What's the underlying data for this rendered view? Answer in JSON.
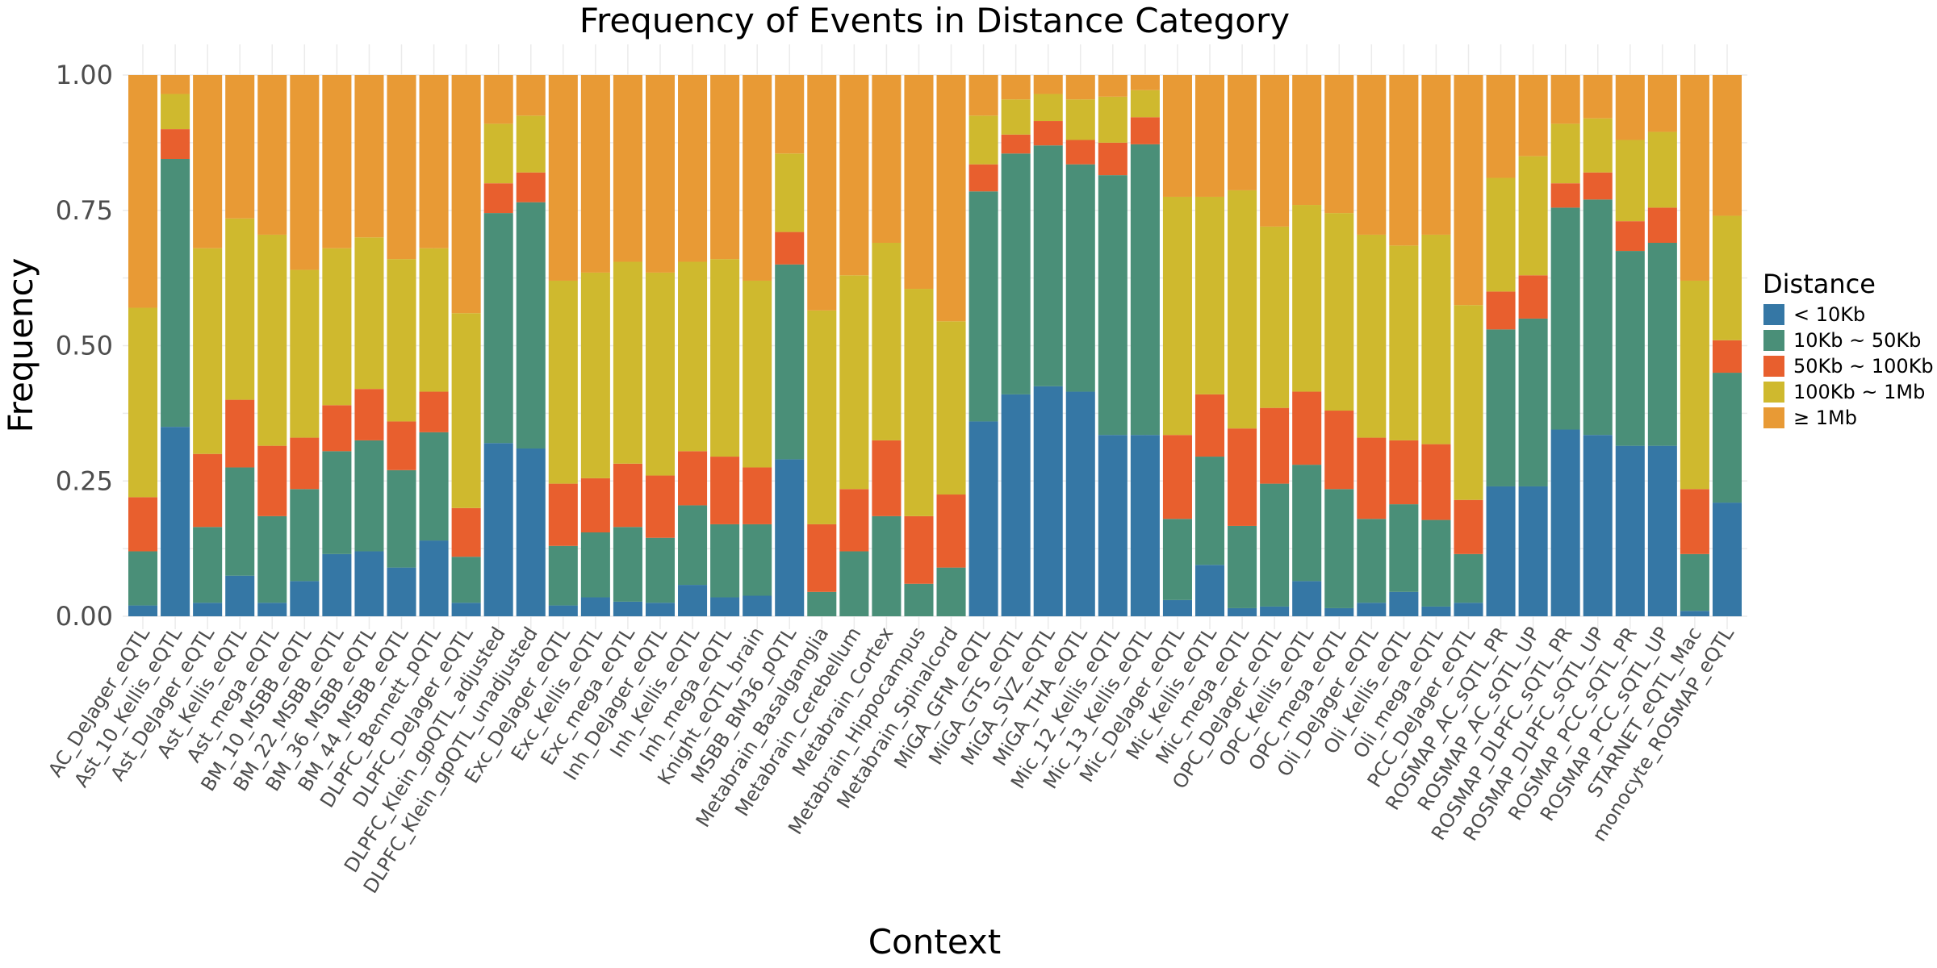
{
  "chart_data": {
    "type": "bar",
    "stacked": true,
    "title": "Frequency of Events in Distance Category",
    "xlabel": "Context",
    "ylabel": "Frequency",
    "ylim": [
      0,
      1
    ],
    "yticks": [
      "0.00",
      "0.25",
      "0.50",
      "0.75",
      "1.00"
    ],
    "grid": true,
    "legend_title": "Distance",
    "legend_position": "right",
    "categories": [
      "AC_DeJager_eQTL",
      "Ast_10_Kellis_eQTL",
      "Ast_DeJager_eQTL",
      "Ast_Kellis_eQTL",
      "Ast_mega_eQTL",
      "BM_10_MSBB_eQTL",
      "BM_22_MSBB_eQTL",
      "BM_36_MSBB_eQTL",
      "BM_44_MSBB_eQTL",
      "DLPFC_Bennett_pQTL",
      "DLPFC_DeJager_eQTL",
      "DLPFC_Klein_gpQTL_adjusted",
      "DLPFC_Klein_gpQTL_unadjusted",
      "Exc_DeJager_eQTL",
      "Exc_Kellis_eQTL",
      "Exc_mega_eQTL",
      "Inh_DeJager_eQTL",
      "Inh_Kellis_eQTL",
      "Inh_mega_eQTL",
      "Knight_eQTL_brain",
      "MSBB_BM36_pQTL",
      "Metabrain_Basalganglia",
      "Metabrain_Cerebellum",
      "Metabrain_Cortex",
      "Metabrain_Hippocampus",
      "Metabrain_Spinalcord",
      "MiGA_GFM_eQTL",
      "MiGA_GTS_eQTL",
      "MiGA_SVZ_eQTL",
      "MiGA_THA_eQTL",
      "Mic_12_Kellis_eQTL",
      "Mic_13_Kellis_eQTL",
      "Mic_DeJager_eQTL",
      "Mic_Kellis_eQTL",
      "Mic_mega_eQTL",
      "OPC_DeJager_eQTL",
      "OPC_Kellis_eQTL",
      "OPC_mega_eQTL",
      "Oli_DeJager_eQTL",
      "Oli_Kellis_eQTL",
      "Oli_mega_eQTL",
      "PCC_DeJager_eQTL",
      "ROSMAP_AC_sQTL_PR",
      "ROSMAP_AC_sQTL_UP",
      "ROSMAP_DLPFC_sQTL_PR",
      "ROSMAP_DLPFC_sQTL_UP",
      "ROSMAP_PCC_sQTL_PR",
      "ROSMAP_PCC_sQTL_UP",
      "STARNET_eQTL_Mac",
      "monocyte_ROSMAP_eQTL"
    ],
    "series": [
      {
        "name": "< 10Kb",
        "color": "#3577a5",
        "values": [
          0.02,
          0.35,
          0.025,
          0.075,
          0.025,
          0.065,
          0.115,
          0.12,
          0.09,
          0.14,
          0.025,
          0.32,
          0.31,
          0.02,
          0.035,
          0.027,
          0.025,
          0.058,
          0.035,
          0.038,
          0.29,
          0.0,
          0.0,
          0.0,
          0.0,
          0.0,
          0.36,
          0.41,
          0.425,
          0.415,
          0.335,
          0.335,
          0.03,
          0.095,
          0.015,
          0.018,
          0.065,
          0.015,
          0.025,
          0.045,
          0.018,
          0.025,
          0.24,
          0.24,
          0.345,
          0.335,
          0.315,
          0.315,
          0.01,
          0.21
        ]
      },
      {
        "name": "10Kb ~ 50Kb",
        "color": "#4a8f78",
        "values": [
          0.1,
          0.495,
          0.14,
          0.2,
          0.16,
          0.17,
          0.19,
          0.205,
          0.18,
          0.2,
          0.085,
          0.425,
          0.455,
          0.11,
          0.12,
          0.138,
          0.12,
          0.147,
          0.135,
          0.132,
          0.36,
          0.045,
          0.12,
          0.185,
          0.06,
          0.09,
          0.425,
          0.445,
          0.445,
          0.42,
          0.48,
          0.537,
          0.15,
          0.2,
          0.152,
          0.227,
          0.215,
          0.22,
          0.155,
          0.162,
          0.16,
          0.09,
          0.29,
          0.31,
          0.41,
          0.435,
          0.36,
          0.375,
          0.105,
          0.24
        ]
      },
      {
        "name": "50Kb ~ 100Kb",
        "color": "#e85f2e",
        "values": [
          0.1,
          0.055,
          0.135,
          0.125,
          0.13,
          0.095,
          0.085,
          0.095,
          0.09,
          0.075,
          0.09,
          0.055,
          0.055,
          0.115,
          0.1,
          0.117,
          0.115,
          0.1,
          0.125,
          0.105,
          0.06,
          0.125,
          0.115,
          0.14,
          0.125,
          0.135,
          0.05,
          0.035,
          0.045,
          0.045,
          0.06,
          0.05,
          0.155,
          0.115,
          0.18,
          0.14,
          0.135,
          0.145,
          0.15,
          0.118,
          0.14,
          0.1,
          0.07,
          0.08,
          0.045,
          0.05,
          0.055,
          0.065,
          0.12,
          0.06
        ]
      },
      {
        "name": "100Kb ~ 1Mb",
        "color": "#cfb92e",
        "values": [
          0.35,
          0.065,
          0.38,
          0.335,
          0.39,
          0.31,
          0.29,
          0.28,
          0.3,
          0.265,
          0.36,
          0.11,
          0.105,
          0.375,
          0.38,
          0.373,
          0.375,
          0.35,
          0.365,
          0.345,
          0.145,
          0.395,
          0.395,
          0.365,
          0.42,
          0.32,
          0.09,
          0.065,
          0.05,
          0.075,
          0.085,
          0.05,
          0.44,
          0.365,
          0.44,
          0.335,
          0.345,
          0.365,
          0.375,
          0.36,
          0.387,
          0.36,
          0.21,
          0.22,
          0.11,
          0.1,
          0.15,
          0.14,
          0.385,
          0.23
        ]
      },
      {
        "name": "≥ 1Mb",
        "color": "#e89a35",
        "values": [
          0.43,
          0.035,
          0.32,
          0.265,
          0.295,
          0.36,
          0.32,
          0.3,
          0.34,
          0.32,
          0.44,
          0.09,
          0.075,
          0.38,
          0.365,
          0.345,
          0.365,
          0.345,
          0.34,
          0.38,
          0.145,
          0.435,
          0.37,
          0.31,
          0.395,
          0.455,
          0.075,
          0.045,
          0.035,
          0.045,
          0.04,
          0.028,
          0.225,
          0.225,
          0.213,
          0.28,
          0.24,
          0.255,
          0.295,
          0.315,
          0.295,
          0.425,
          0.19,
          0.15,
          0.09,
          0.08,
          0.12,
          0.105,
          0.38,
          0.26
        ]
      }
    ]
  }
}
